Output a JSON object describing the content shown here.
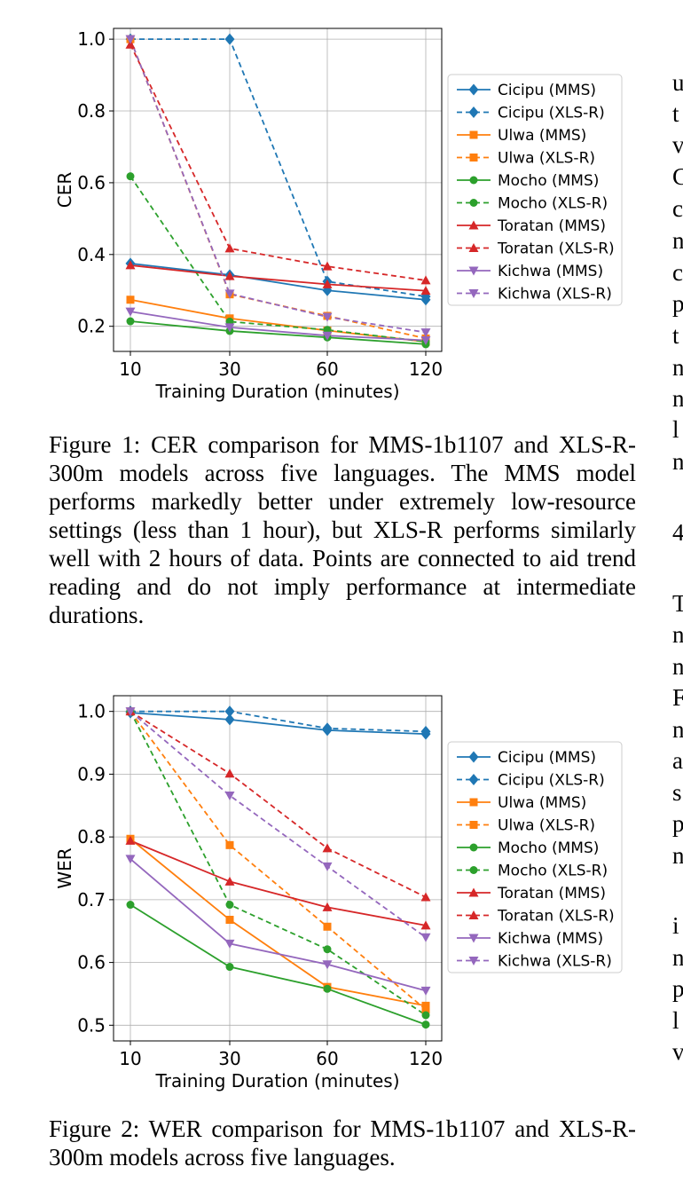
{
  "chart_data": [
    {
      "type": "line",
      "xlabel": "Training Duration (minutes)",
      "ylabel": "CER",
      "categories": [
        "10",
        "30",
        "60",
        "120"
      ],
      "ylim": [
        0.13,
        1.03
      ],
      "yticks": [
        "0.2",
        "0.4",
        "0.6",
        "0.8",
        "1.0"
      ],
      "ytick_values": [
        0.2,
        0.4,
        0.6,
        0.8,
        1.0
      ],
      "grid": true,
      "legend_position": "right",
      "series": [
        {
          "name": "Cicipu (MMS)",
          "values": [
            0.375,
            0.343,
            0.3,
            0.274
          ],
          "color": "#1f77b4",
          "dash": false,
          "marker": "diamond"
        },
        {
          "name": "Cicipu (XLS-R)",
          "values": [
            1.0,
            1.0,
            0.325,
            0.283
          ],
          "color": "#1f77b4",
          "dash": true,
          "marker": "diamond"
        },
        {
          "name": "Ulwa (MMS)",
          "values": [
            0.274,
            0.222,
            0.188,
            0.157
          ],
          "color": "#ff7f0e",
          "dash": false,
          "marker": "square"
        },
        {
          "name": "Ulwa (XLS-R)",
          "values": [
            1.0,
            0.289,
            0.229,
            0.166
          ],
          "color": "#ff7f0e",
          "dash": true,
          "marker": "square"
        },
        {
          "name": "Mocho (MMS)",
          "values": [
            0.214,
            0.187,
            0.169,
            0.15
          ],
          "color": "#2ca02c",
          "dash": false,
          "marker": "circle"
        },
        {
          "name": "Mocho (XLS-R)",
          "values": [
            0.618,
            0.213,
            0.19,
            0.157
          ],
          "color": "#2ca02c",
          "dash": true,
          "marker": "circle"
        },
        {
          "name": "Toratan (MMS)",
          "values": [
            0.37,
            0.34,
            0.317,
            0.299
          ],
          "color": "#d62728",
          "dash": false,
          "marker": "triangle-up"
        },
        {
          "name": "Toratan (XLS-R)",
          "values": [
            0.985,
            0.417,
            0.367,
            0.328
          ],
          "color": "#d62728",
          "dash": true,
          "marker": "triangle-up"
        },
        {
          "name": "Kichwa (MMS)",
          "values": [
            0.241,
            0.197,
            0.174,
            0.161
          ],
          "color": "#9467bd",
          "dash": false,
          "marker": "triangle-down"
        },
        {
          "name": "Kichwa (XLS-R)",
          "values": [
            1.0,
            0.291,
            0.226,
            0.183
          ],
          "color": "#9467bd",
          "dash": true,
          "marker": "triangle-down"
        }
      ]
    },
    {
      "type": "line",
      "xlabel": "Training Duration (minutes)",
      "ylabel": "WER",
      "categories": [
        "10",
        "30",
        "60",
        "120"
      ],
      "ylim": [
        0.475,
        1.025
      ],
      "yticks": [
        "0.5",
        "0.6",
        "0.7",
        "0.8",
        "0.9",
        "1.0"
      ],
      "ytick_values": [
        0.5,
        0.6,
        0.7,
        0.8,
        0.9,
        1.0
      ],
      "grid": true,
      "legend_position": "right",
      "series": [
        {
          "name": "Cicipu (MMS)",
          "values": [
            0.998,
            0.987,
            0.97,
            0.964
          ],
          "color": "#1f77b4",
          "dash": false,
          "marker": "diamond"
        },
        {
          "name": "Cicipu (XLS-R)",
          "values": [
            1.0,
            1.0,
            0.973,
            0.968
          ],
          "color": "#1f77b4",
          "dash": true,
          "marker": "diamond"
        },
        {
          "name": "Ulwa (MMS)",
          "values": [
            0.797,
            0.668,
            0.561,
            0.531
          ],
          "color": "#ff7f0e",
          "dash": false,
          "marker": "square"
        },
        {
          "name": "Ulwa (XLS-R)",
          "values": [
            1.0,
            0.787,
            0.657,
            0.525
          ],
          "color": "#ff7f0e",
          "dash": true,
          "marker": "square"
        },
        {
          "name": "Mocho (MMS)",
          "values": [
            0.692,
            0.593,
            0.558,
            0.501
          ],
          "color": "#2ca02c",
          "dash": false,
          "marker": "circle"
        },
        {
          "name": "Mocho (XLS-R)",
          "values": [
            1.0,
            0.692,
            0.621,
            0.516
          ],
          "color": "#2ca02c",
          "dash": true,
          "marker": "circle"
        },
        {
          "name": "Toratan (MMS)",
          "values": [
            0.794,
            0.729,
            0.688,
            0.659
          ],
          "color": "#d62728",
          "dash": false,
          "marker": "triangle-up"
        },
        {
          "name": "Toratan (XLS-R)",
          "values": [
            1.0,
            0.901,
            0.782,
            0.704
          ],
          "color": "#d62728",
          "dash": true,
          "marker": "triangle-up"
        },
        {
          "name": "Kichwa (MMS)",
          "values": [
            0.765,
            0.63,
            0.597,
            0.555
          ],
          "color": "#9467bd",
          "dash": false,
          "marker": "triangle-down"
        },
        {
          "name": "Kichwa (XLS-R)",
          "values": [
            1.0,
            0.866,
            0.753,
            0.64
          ],
          "color": "#9467bd",
          "dash": true,
          "marker": "triangle-down"
        }
      ]
    }
  ],
  "captions": {
    "figure1": "Figure 1: CER comparison for MMS-1b1107 and XLS-R-300m models across five languages. The MMS model performs markedly better under extremely low-resource settings (less than 1 hour), but XLS-R performs similarly well with 2 hours of data. Points are connected to aid trend reading and do not imply performance at intermediate durations.",
    "figure2": "Figure 2: WER comparison for MMS-1b1107 and XLS-R-300m models across five languages."
  },
  "right_column_fragments": [
    "u",
    "t",
    "v",
    "C",
    "c",
    "n",
    "c",
    "p",
    "t",
    "n",
    "n",
    "l",
    "n",
    "4",
    "T",
    "n",
    "n",
    "F",
    "n",
    "a",
    "s",
    "p",
    "n",
    "i",
    "n",
    "p",
    "l",
    "v"
  ]
}
